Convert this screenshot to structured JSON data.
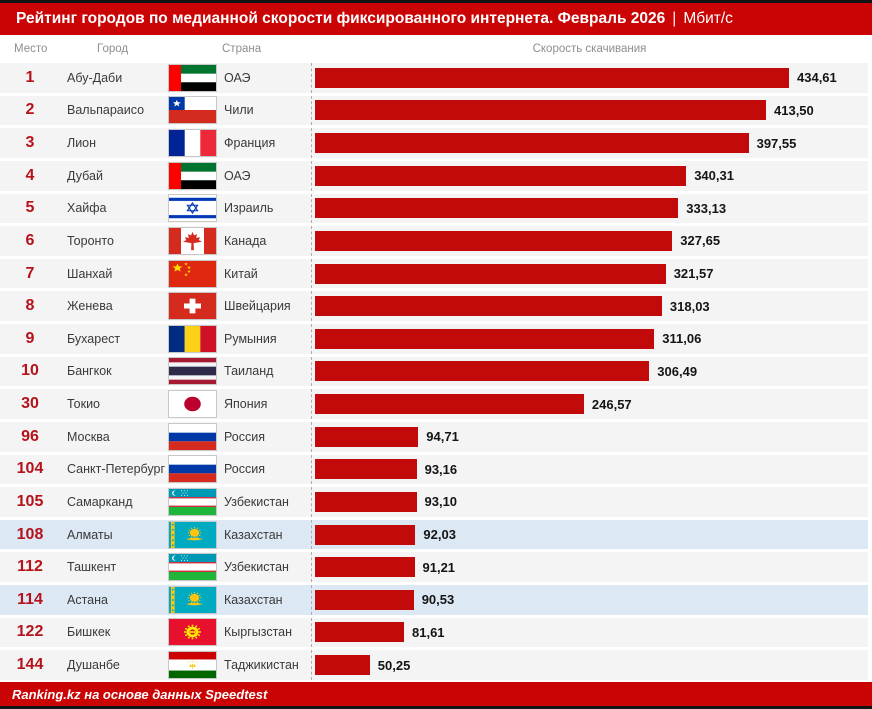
{
  "title": {
    "main": "Рейтинг городов по медианной скорости фиксированного интернета. Февраль 2026",
    "separator": "|",
    "unit": "Мбит/с"
  },
  "columns": {
    "rank": "Место",
    "city": "Город",
    "country": "Страна",
    "speed": "Скорость скачивания"
  },
  "footer": {
    "text": "Ranking.kz на основе данных Speedtest"
  },
  "colors": {
    "header_red": "#CA0404",
    "bar_red": "#C20A0A",
    "rank_red": "#B5121B",
    "row_gray": "#F4F4F4",
    "highlight_blue": "#DCE8F4",
    "border_black": "#141414"
  },
  "chart_data": {
    "type": "bar",
    "title": "Рейтинг городов по медианной скорости фиксированного интернета. Февраль 2026",
    "unit": "Мбит/с",
    "xlabel": "Скорость скачивания",
    "ylabel": "",
    "xlim": [
      0,
      434.61
    ],
    "legend": "none",
    "grid": "off",
    "orientation": "horizontal",
    "rows": [
      {
        "rank": "1",
        "city": "Абу-Даби",
        "country": "ОАЭ",
        "flag": "uae",
        "value": 434.61,
        "label": "434,61",
        "highlight": false
      },
      {
        "rank": "2",
        "city": "Вальпараисо",
        "country": "Чили",
        "flag": "chile",
        "value": 413.5,
        "label": "413,50",
        "highlight": false
      },
      {
        "rank": "3",
        "city": "Лион",
        "country": "Франция",
        "flag": "france",
        "value": 397.55,
        "label": "397,55",
        "highlight": false
      },
      {
        "rank": "4",
        "city": "Дубай",
        "country": "ОАЭ",
        "flag": "uae",
        "value": 340.31,
        "label": "340,31",
        "highlight": false
      },
      {
        "rank": "5",
        "city": "Хайфа",
        "country": "Израиль",
        "flag": "israel",
        "value": 333.13,
        "label": "333,13",
        "highlight": false
      },
      {
        "rank": "6",
        "city": "Торонто",
        "country": "Канада",
        "flag": "canada",
        "value": 327.65,
        "label": "327,65",
        "highlight": false
      },
      {
        "rank": "7",
        "city": "Шанхай",
        "country": "Китай",
        "flag": "china",
        "value": 321.57,
        "label": "321,57",
        "highlight": false
      },
      {
        "rank": "8",
        "city": "Женева",
        "country": "Швейцария",
        "flag": "switzerland",
        "value": 318.03,
        "label": "318,03",
        "highlight": false
      },
      {
        "rank": "9",
        "city": "Бухарест",
        "country": "Румыния",
        "flag": "romania",
        "value": 311.06,
        "label": "311,06",
        "highlight": false
      },
      {
        "rank": "10",
        "city": "Бангкок",
        "country": "Таиланд",
        "flag": "thailand",
        "value": 306.49,
        "label": "306,49",
        "highlight": false
      },
      {
        "rank": "30",
        "city": "Токио",
        "country": "Япония",
        "flag": "japan",
        "value": 246.57,
        "label": "246,57",
        "highlight": false
      },
      {
        "rank": "96",
        "city": "Москва",
        "country": "Россия",
        "flag": "russia",
        "value": 94.71,
        "label": "94,71",
        "highlight": false
      },
      {
        "rank": "104",
        "city": "Санкт-Петербург",
        "country": "Россия",
        "flag": "russia",
        "value": 93.16,
        "label": "93,16",
        "highlight": false
      },
      {
        "rank": "105",
        "city": "Самарканд",
        "country": "Узбекистан",
        "flag": "uzbekistan",
        "value": 93.1,
        "label": "93,10",
        "highlight": false
      },
      {
        "rank": "108",
        "city": "Алматы",
        "country": "Казахстан",
        "flag": "kazakhstan",
        "value": 92.03,
        "label": "92,03",
        "highlight": true
      },
      {
        "rank": "112",
        "city": "Ташкент",
        "country": "Узбекистан",
        "flag": "uzbekistan",
        "value": 91.21,
        "label": "91,21",
        "highlight": false
      },
      {
        "rank": "114",
        "city": "Астана",
        "country": "Казахстан",
        "flag": "kazakhstan",
        "value": 90.53,
        "label": "90,53",
        "highlight": true
      },
      {
        "rank": "122",
        "city": "Бишкек",
        "country": "Кыргызстан",
        "flag": "kyrgyzstan",
        "value": 81.61,
        "label": "81,61",
        "highlight": false
      },
      {
        "rank": "144",
        "city": "Душанбе",
        "country": "Таджикистан",
        "flag": "tajikistan",
        "value": 50.25,
        "label": "50,25",
        "highlight": false
      }
    ]
  }
}
